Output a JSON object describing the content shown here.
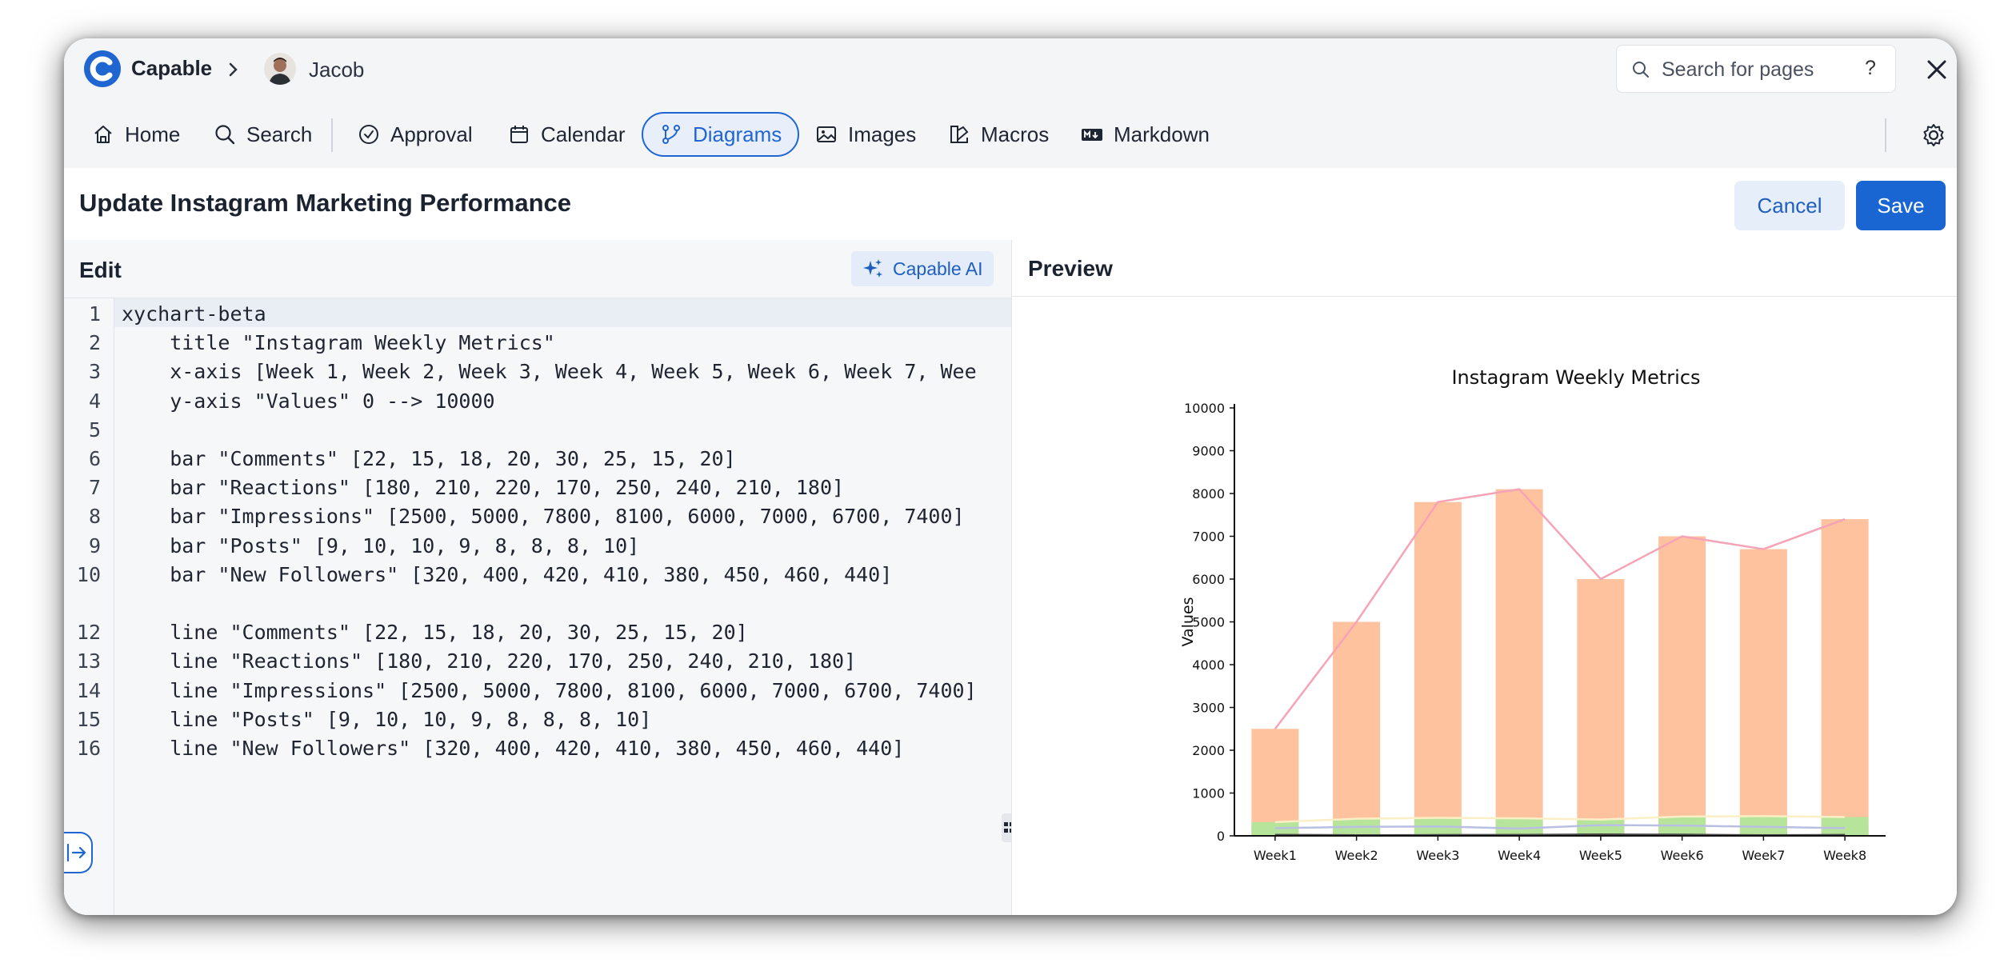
{
  "app": {
    "brand": "Capable",
    "user": "Jacob",
    "search_placeholder": "Search for pages",
    "help_label": "?"
  },
  "nav": {
    "items": [
      {
        "label": "Home",
        "icon": "home-icon"
      },
      {
        "label": "Search",
        "icon": "search-icon"
      },
      {
        "label": "Approval",
        "icon": "check-circle-icon"
      },
      {
        "label": "Calendar",
        "icon": "calendar-icon"
      },
      {
        "label": "Diagrams",
        "icon": "diagram-icon",
        "active": true
      },
      {
        "label": "Images",
        "icon": "image-icon"
      },
      {
        "label": "Macros",
        "icon": "macros-icon"
      },
      {
        "label": "Markdown",
        "icon": "markdown-icon"
      }
    ]
  },
  "page": {
    "title": "Update Instagram Marketing Performance",
    "cancel_label": "Cancel",
    "save_label": "Save"
  },
  "editor": {
    "title": "Edit",
    "ai_label": "Capable AI",
    "lines": [
      {
        "n": "1",
        "text": "xychart-beta"
      },
      {
        "n": "2",
        "text": "    title \"Instagram Weekly Metrics\""
      },
      {
        "n": "3",
        "text": "    x-axis [Week 1, Week 2, Week 3, Week 4, Week 5, Week 6, Week 7, Wee"
      },
      {
        "n": "4",
        "text": "    y-axis \"Values\" 0 --> 10000"
      },
      {
        "n": "5",
        "text": ""
      },
      {
        "n": "6",
        "text": "    bar \"Comments\" [22, 15, 18, 20, 30, 25, 15, 20]"
      },
      {
        "n": "7",
        "text": "    bar \"Reactions\" [180, 210, 220, 170, 250, 240, 210, 180]"
      },
      {
        "n": "8",
        "text": "    bar \"Impressions\" [2500, 5000, 7800, 8100, 6000, 7000, 6700, 7400]"
      },
      {
        "n": "9",
        "text": "    bar \"Posts\" [9, 10, 10, 9, 8, 8, 8, 10]"
      },
      {
        "n": "10",
        "text": "    bar \"New Followers\" [320, 400, 420, 410, 380, 450, 460, 440]"
      },
      {
        "n": "",
        "text": ""
      },
      {
        "n": "12",
        "text": "    line \"Comments\" [22, 15, 18, 20, 30, 25, 15, 20]"
      },
      {
        "n": "13",
        "text": "    line \"Reactions\" [180, 210, 220, 170, 250, 240, 210, 180]"
      },
      {
        "n": "14",
        "text": "    line \"Impressions\" [2500, 5000, 7800, 8100, 6000, 7000, 6700, 7400]"
      },
      {
        "n": "15",
        "text": "    line \"Posts\" [9, 10, 10, 9, 8, 8, 8, 10]"
      },
      {
        "n": "16",
        "text": "    line \"New Followers\" [320, 400, 420, 410, 380, 450, 460, 440]"
      }
    ]
  },
  "preview": {
    "title": "Preview"
  },
  "chart_data": {
    "type": "bar",
    "title": "Instagram Weekly Metrics",
    "ylabel": "Values",
    "xlabel": "",
    "ylim": [
      0,
      10000
    ],
    "yticks": [
      0,
      1000,
      2000,
      3000,
      4000,
      5000,
      6000,
      7000,
      8000,
      9000,
      10000
    ],
    "categories": [
      "Week1",
      "Week2",
      "Week3",
      "Week4",
      "Week5",
      "Week6",
      "Week7",
      "Week8"
    ],
    "bar_series": [
      {
        "name": "Comments",
        "values": [
          22,
          15,
          18,
          20,
          30,
          25,
          15,
          20
        ],
        "color": "#c4cdef"
      },
      {
        "name": "Reactions",
        "values": [
          180,
          210,
          220,
          170,
          250,
          240,
          210,
          180
        ],
        "color": "#f7e3a1"
      },
      {
        "name": "Impressions",
        "values": [
          2500,
          5000,
          7800,
          8100,
          6000,
          7000,
          6700,
          7400
        ],
        "color": "#ffc29e"
      },
      {
        "name": "Posts",
        "values": [
          9,
          10,
          10,
          9,
          8,
          8,
          8,
          10
        ],
        "color": "#d9d9d9"
      },
      {
        "name": "New Followers",
        "values": [
          320,
          400,
          420,
          410,
          380,
          450,
          460,
          440
        ],
        "color": "#b7e49b"
      }
    ],
    "line_series": [
      {
        "name": "Comments",
        "values": [
          22,
          15,
          18,
          20,
          30,
          25,
          15,
          20
        ],
        "color": "#333333"
      },
      {
        "name": "Reactions",
        "values": [
          180,
          210,
          220,
          170,
          250,
          240,
          210,
          180
        ],
        "color": "#b9bfe2"
      },
      {
        "name": "Impressions",
        "values": [
          2500,
          5000,
          7800,
          8100,
          6000,
          7000,
          6700,
          7400
        ],
        "color": "#f6a3b6"
      },
      {
        "name": "Posts",
        "values": [
          9,
          10,
          10,
          9,
          8,
          8,
          8,
          10
        ],
        "color": "#555555"
      },
      {
        "name": "New Followers",
        "values": [
          320,
          400,
          420,
          410,
          380,
          450,
          460,
          440
        ],
        "color": "#fbefc5"
      }
    ],
    "grid": false
  }
}
